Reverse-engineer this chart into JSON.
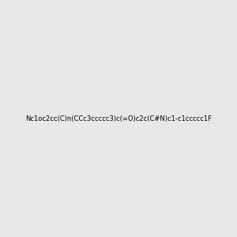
{
  "smiles": "Nc1oc2cc(C)n(CCc3ccccc3)c(=O)c2c(C#N)c1-c1ccccc1F",
  "title": "",
  "background_color": "#e8e8e8",
  "figsize": [
    3.0,
    3.0
  ],
  "dpi": 100,
  "atom_colors": {
    "N": "#4444cc",
    "O": "#cc0000",
    "F": "#cc00cc",
    "C": "#2d6e6e",
    "default": "#2d6e6e"
  },
  "bond_color": "#2d6e6e",
  "label_colors": {
    "NH2": "#4444cc",
    "O": "#cc0000",
    "N": "#4444cc",
    "CN": "#2d6e6e",
    "F": "#cc00cc"
  }
}
